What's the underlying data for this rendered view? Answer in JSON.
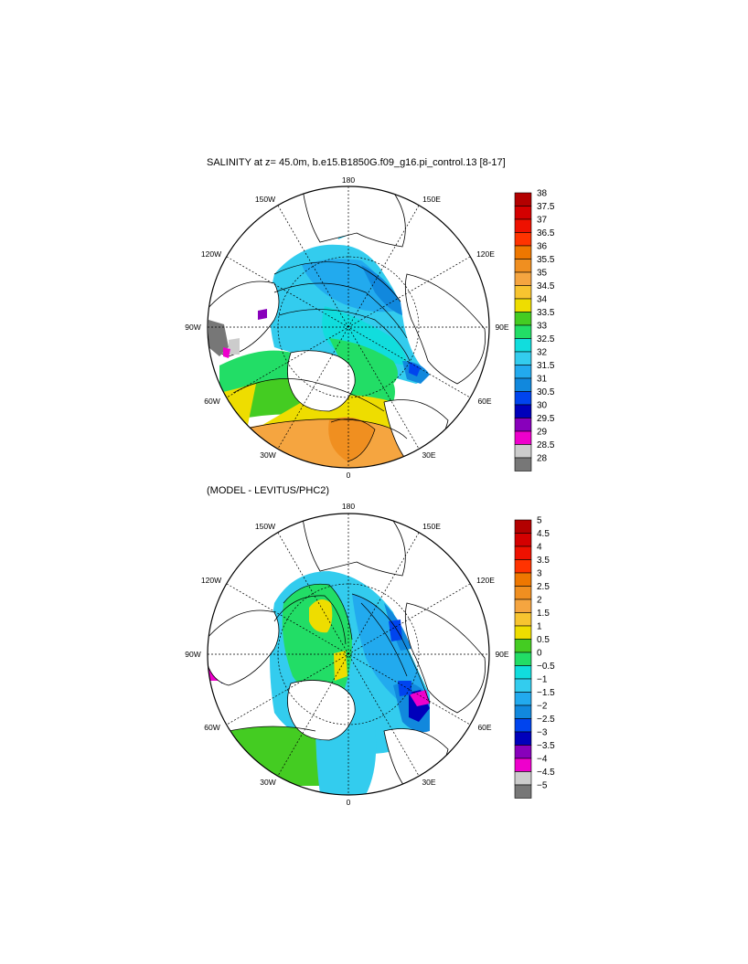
{
  "top_panel": {
    "title": "SALINITY at z=  45.0m, b.e15.B1850G.f09_g16.pi_control.13 [8-17]",
    "longitudes": [
      "180",
      "150E",
      "120E",
      "90E",
      "60E",
      "30E",
      "0",
      "30W",
      "60W",
      "90W",
      "120W",
      "150W"
    ],
    "colorbar_labels": [
      "38",
      "37.5",
      "37",
      "36.5",
      "36",
      "35.5",
      "35",
      "34.5",
      "34",
      "33.5",
      "33",
      "32.5",
      "32",
      "31.5",
      "31",
      "30.5",
      "30",
      "29.5",
      "29",
      "28.5",
      "28"
    ],
    "colorbar_colors": [
      "#b30000",
      "#d40000",
      "#ee1100",
      "#ff3300",
      "#ee7700",
      "#f08f20",
      "#f5a540",
      "#f7c430",
      "#eedd00",
      "#44cc22",
      "#22dd66",
      "#11dddd",
      "#33ccee",
      "#22aaee",
      "#1188dd",
      "#0044ee",
      "#0000bb",
      "#8800bb",
      "#ee00cc",
      "#cccccc",
      "#777777"
    ]
  },
  "bottom_panel": {
    "title": "(MODEL - LEVITUS/PHC2)",
    "longitudes": [
      "180",
      "150E",
      "120E",
      "90E",
      "60E",
      "30E",
      "0",
      "30W",
      "60W",
      "90W",
      "120W",
      "150W"
    ],
    "colorbar_labels": [
      "5",
      "4.5",
      "4",
      "3.5",
      "3",
      "2.5",
      "2",
      "1.5",
      "1",
      "0.5",
      "0",
      "−0.5",
      "−1",
      "−1.5",
      "−2",
      "−2.5",
      "−3",
      "−3.5",
      "−4",
      "−4.5",
      "−5"
    ],
    "colorbar_colors": [
      "#b30000",
      "#d40000",
      "#ee1100",
      "#ff3300",
      "#ee7700",
      "#f08f20",
      "#f5a540",
      "#f7c430",
      "#eedd00",
      "#44cc22",
      "#22dd66",
      "#11dddd",
      "#33ccee",
      "#22aaee",
      "#1188dd",
      "#0044ee",
      "#0000bb",
      "#8800bb",
      "#ee00cc",
      "#cccccc",
      "#777777"
    ]
  }
}
